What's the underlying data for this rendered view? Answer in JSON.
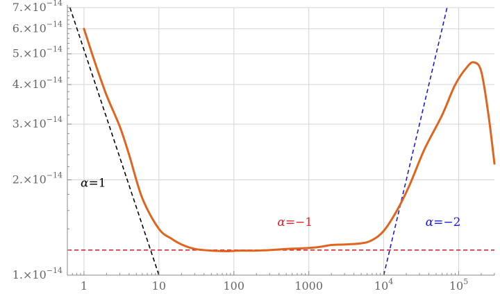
{
  "chart_data": {
    "type": "line",
    "title": "",
    "xlabel": "",
    "ylabel": "",
    "x_scale": "log",
    "y_scale": "log",
    "xlim": [
      0.6,
      300000
    ],
    "ylim": [
      1e-14,
      7e-14
    ],
    "grid": true,
    "x_major_ticks": [
      {
        "value": 1,
        "label": "1"
      },
      {
        "value": 10,
        "label": "10"
      },
      {
        "value": 100,
        "label": "100"
      },
      {
        "value": 1000,
        "label": "1000"
      },
      {
        "value": 10000,
        "label_base": "10",
        "label_exp": "4"
      },
      {
        "value": 100000,
        "label_base": "10",
        "label_exp": "5"
      }
    ],
    "y_major_ticks": [
      {
        "value": 1e-14,
        "label_mant": "1.",
        "label_exp": "−14"
      },
      {
        "value": 2e-14,
        "label_mant": "2.",
        "label_exp": "−14"
      },
      {
        "value": 3e-14,
        "label_mant": "3.",
        "label_exp": "−14"
      },
      {
        "value": 4e-14,
        "label_mant": "4.",
        "label_exp": "−14"
      },
      {
        "value": 5e-14,
        "label_mant": "5.",
        "label_exp": "−14"
      },
      {
        "value": 6e-14,
        "label_mant": "6.",
        "label_exp": "−14"
      },
      {
        "value": 7e-14,
        "label_mant": "7.",
        "label_exp": "−14"
      }
    ],
    "times_symbol": "×",
    "series": [
      {
        "color": "#e0641e",
        "style": "solid",
        "points": [
          [
            1,
            6e-14
          ],
          [
            1.4,
            4.7e-14
          ],
          [
            2,
            3.7e-14
          ],
          [
            3,
            2.95e-14
          ],
          [
            4,
            2.4e-14
          ],
          [
            6,
            1.75e-14
          ],
          [
            10,
            1.4e-14
          ],
          [
            15,
            1.3e-14
          ],
          [
            20,
            1.25e-14
          ],
          [
            30,
            1.21e-14
          ],
          [
            50,
            1.195e-14
          ],
          [
            80,
            1.19e-14
          ],
          [
            120,
            1.195e-14
          ],
          [
            200,
            1.195e-14
          ],
          [
            300,
            1.2e-14
          ],
          [
            500,
            1.21e-14
          ],
          [
            800,
            1.215e-14
          ],
          [
            1300,
            1.225e-14
          ],
          [
            2000,
            1.245e-14
          ],
          [
            3000,
            1.25e-14
          ],
          [
            5000,
            1.26e-14
          ],
          [
            7000,
            1.29e-14
          ],
          [
            10000,
            1.38e-14
          ],
          [
            15000,
            1.6e-14
          ],
          [
            22000,
            1.92e-14
          ],
          [
            35000,
            2.5e-14
          ],
          [
            60000,
            3.2e-14
          ],
          [
            90000,
            4e-14
          ],
          [
            130000,
            4.55e-14
          ],
          [
            160000,
            4.7e-14
          ],
          [
            200000,
            4.4e-14
          ],
          [
            250000,
            3.2e-14
          ],
          [
            300000,
            2.25e-14
          ]
        ]
      },
      {
        "color": "#000000",
        "style": "dashed",
        "points": [
          [
            0.65,
            7e-14
          ],
          [
            10,
            1e-14
          ]
        ]
      },
      {
        "color": "#e4202c",
        "style": "dashed",
        "points": [
          [
            0.6,
            1.2e-14
          ],
          [
            300000,
            1.2e-14
          ]
        ]
      },
      {
        "color": "#1a1ad6",
        "style": "dashed",
        "points": [
          [
            10000,
            1e-14
          ],
          [
            70000,
            7e-14
          ]
        ]
      }
    ],
    "annotations": [
      {
        "text_sym": "α",
        "text_rest": "=1",
        "color": "#000000",
        "x": 0.9,
        "y": 1.9e-14
      },
      {
        "text_sym": "α",
        "text_rest": "=−1",
        "color": "#e4202c",
        "x": 380,
        "y": 1.43e-14
      },
      {
        "text_sym": "α",
        "text_rest": "=−2",
        "color": "#1a1ad6",
        "x": 36000,
        "y": 1.43e-14
      }
    ]
  }
}
